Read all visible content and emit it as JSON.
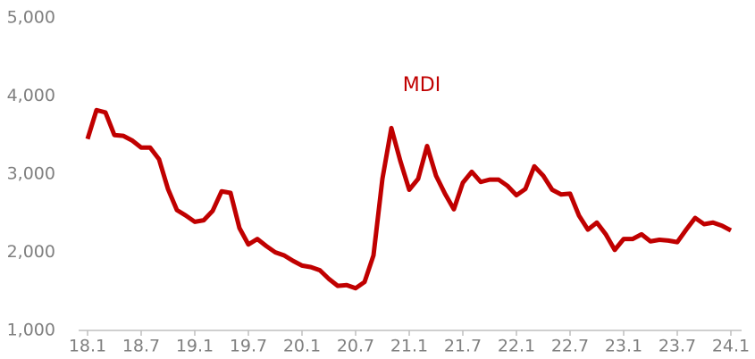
{
  "chart_data": {
    "type": "line",
    "categories": [
      "18.1",
      null,
      null,
      null,
      null,
      null,
      "18.7",
      null,
      null,
      null,
      null,
      null,
      "19.1",
      null,
      null,
      null,
      null,
      null,
      "19.7",
      null,
      null,
      null,
      null,
      null,
      "20.1",
      null,
      null,
      null,
      null,
      null,
      "20.7",
      null,
      null,
      null,
      null,
      null,
      "21.1",
      null,
      null,
      null,
      null,
      null,
      "21.7",
      null,
      null,
      null,
      null,
      null,
      "22.1",
      null,
      null,
      null,
      null,
      null,
      "22.7",
      null,
      null,
      null,
      null,
      null,
      "23.1",
      null,
      null,
      null,
      null,
      null,
      "23.7",
      null,
      null,
      null,
      null,
      null,
      "24.1"
    ],
    "series": [
      {
        "name": "MDI",
        "color": "#c00000",
        "values": [
          3450,
          3820,
          3790,
          3500,
          3490,
          3430,
          3340,
          3340,
          3190,
          2810,
          2540,
          2470,
          2390,
          2410,
          2530,
          2780,
          2760,
          2310,
          2100,
          2170,
          2080,
          2000,
          1960,
          1890,
          1830,
          1810,
          1770,
          1660,
          1570,
          1580,
          1540,
          1620,
          1960,
          2940,
          3590,
          3170,
          2800,
          2940,
          3360,
          2980,
          2750,
          2550,
          2890,
          3030,
          2900,
          2930,
          2930,
          2850,
          2730,
          2810,
          3100,
          2980,
          2800,
          2740,
          2750,
          2470,
          2290,
          2380,
          2230,
          2030,
          2170,
          2170,
          2230,
          2140,
          2160,
          2150,
          2130,
          2290,
          2440,
          2360,
          2380,
          2340,
          2280
        ]
      }
    ],
    "ylim": [
      1000,
      5000
    ],
    "yticks": [
      {
        "value": 1000,
        "label": "1,000"
      },
      {
        "value": 2000,
        "label": "2,000"
      },
      {
        "value": 3000,
        "label": "3,000"
      },
      {
        "value": 4000,
        "label": "4,000"
      },
      {
        "value": 5000,
        "label": "5,000"
      }
    ],
    "grid": false
  }
}
